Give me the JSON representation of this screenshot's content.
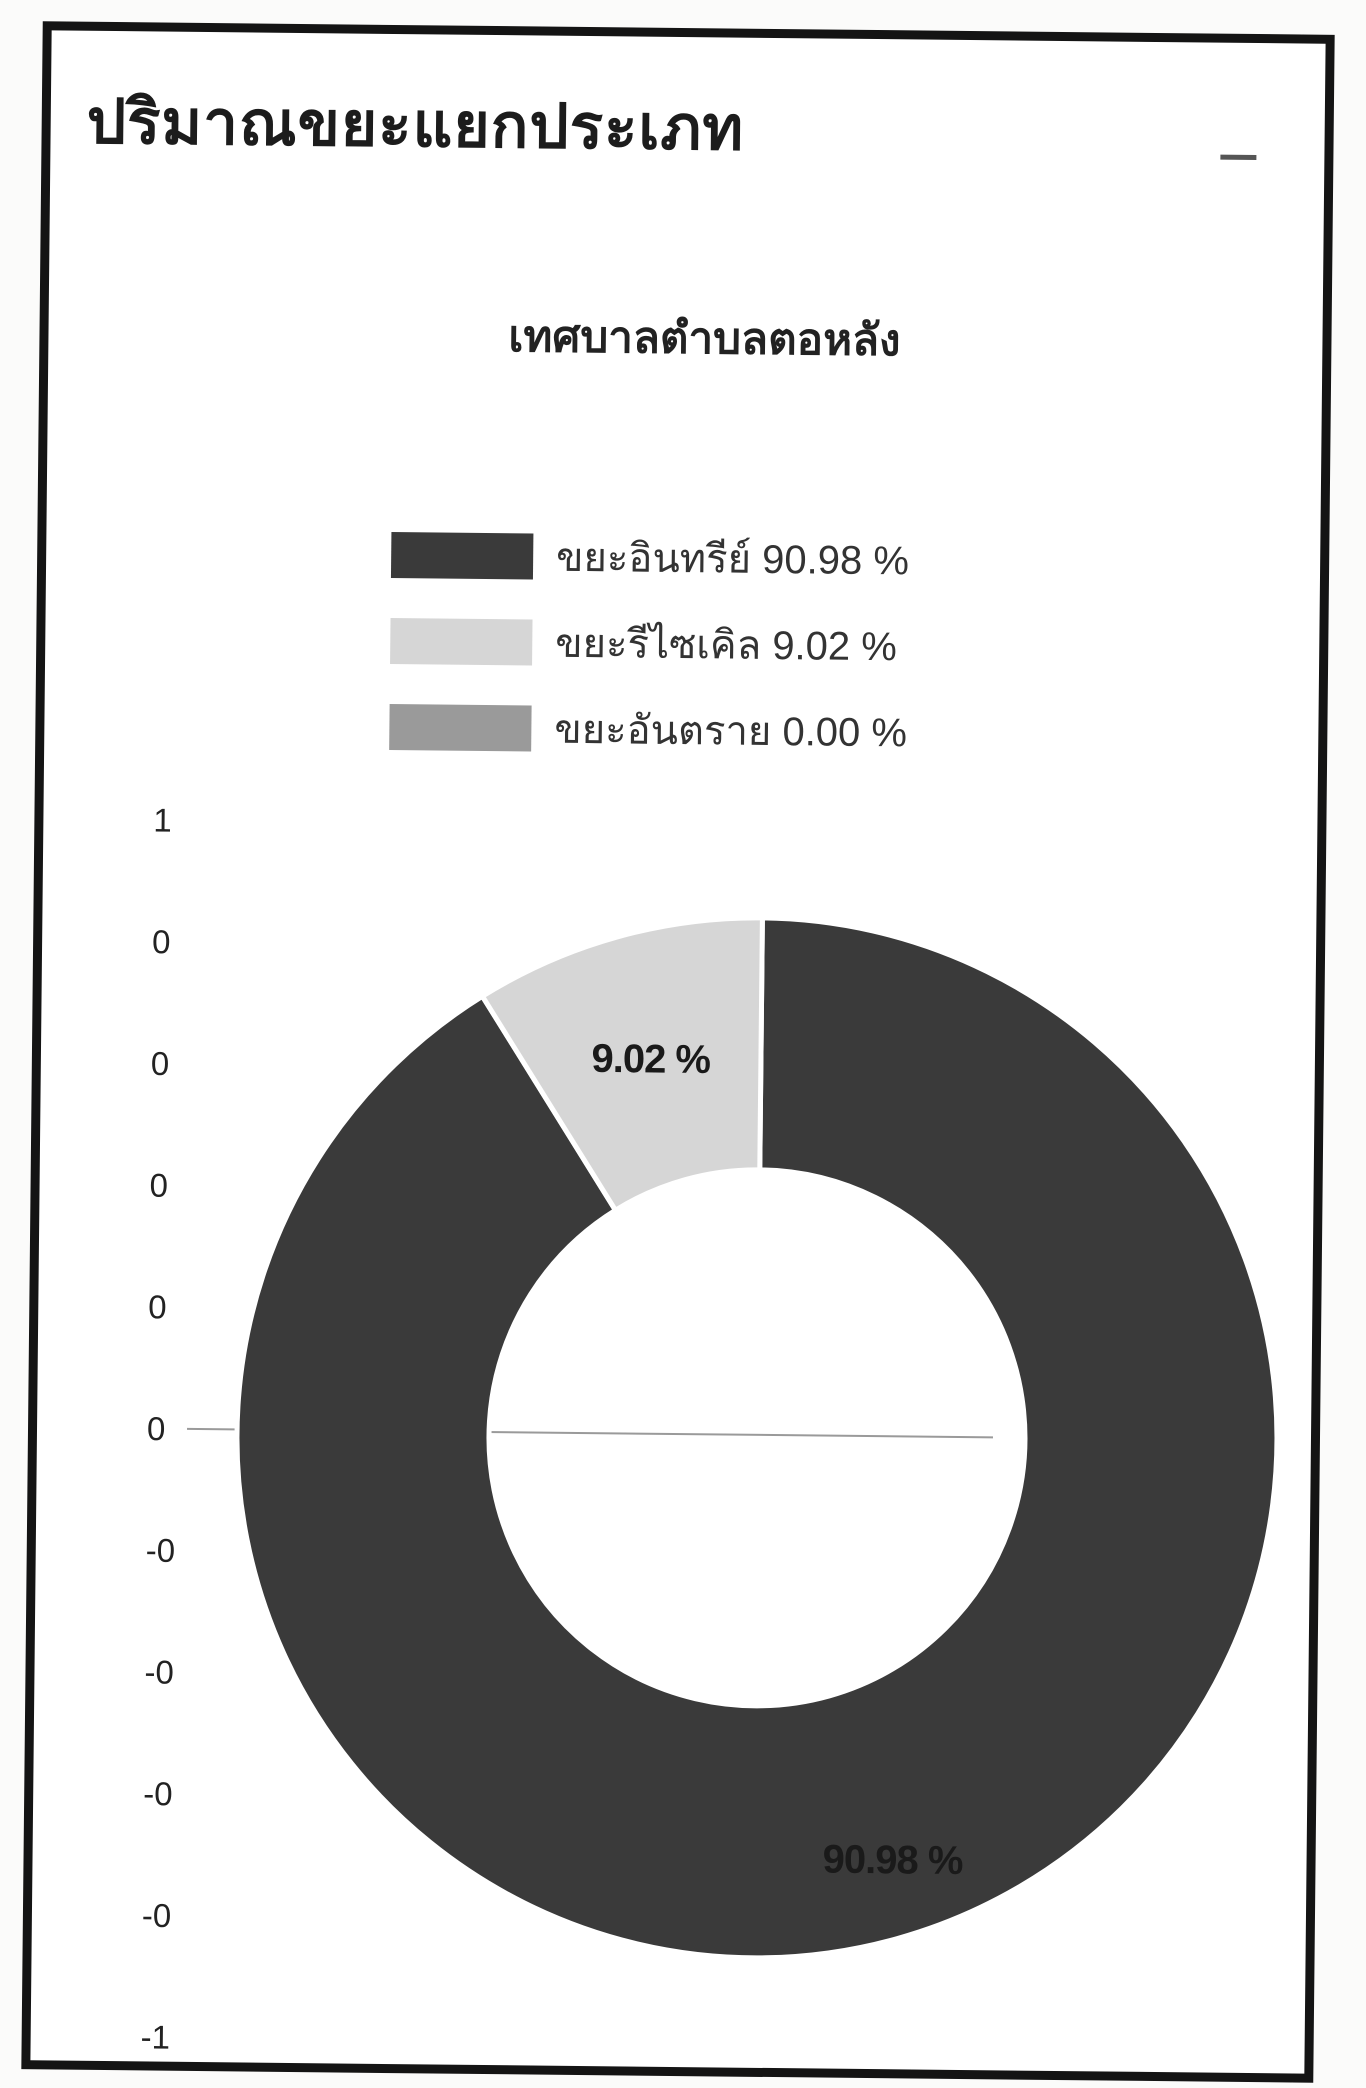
{
  "panel": {
    "title": "ปริมาณขยะแยกประเภท",
    "minimize_icon": "minimize-icon"
  },
  "chart_data": {
    "type": "pie",
    "subtype": "donut",
    "title": "เทศบาลตำบลตอหลัง",
    "slices": [
      {
        "name": "ขยะอินทรีย์",
        "value": 90.98,
        "color": "#3a3a3a",
        "label": "90.98 %"
      },
      {
        "name": "ขยะรีไซเคิล",
        "value": 9.02,
        "color": "#d6d6d6",
        "label": "9.02 %"
      },
      {
        "name": "ขยะอันตราย",
        "value": 0.0,
        "color": "#9a9a9a",
        "label": ""
      }
    ],
    "legend": [
      {
        "text": "ขยะอินทรีย์ 90.98 %",
        "color": "#3a3a3a"
      },
      {
        "text": "ขยะรีไซเคิล 9.02 %",
        "color": "#d6d6d6"
      },
      {
        "text": "ขยะอันตราย 0.00 %",
        "color": "#9a9a9a"
      }
    ],
    "legend_position": "top",
    "y_ticks": [
      "1",
      "0",
      "0",
      "0",
      "0",
      "0",
      "-0",
      "-0",
      "-0",
      "-0",
      "-1"
    ],
    "ylim": [
      -1,
      1
    ],
    "grid": false,
    "zero_line": true
  }
}
